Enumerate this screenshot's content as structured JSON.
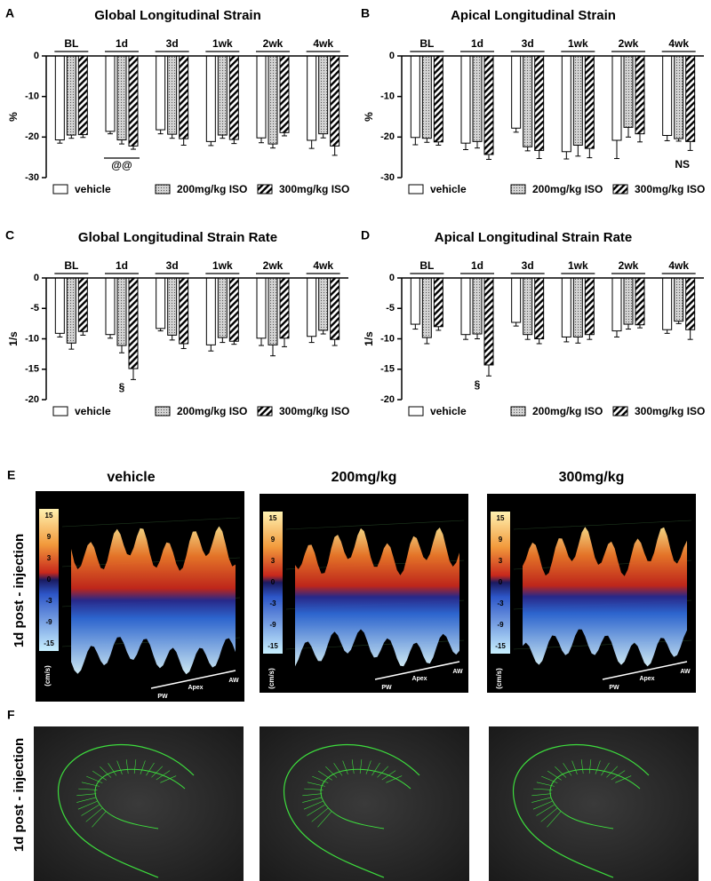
{
  "chart_data": [
    {
      "type": "bar",
      "panel_label": "A",
      "title": "Global Longitudinal Strain",
      "ylabel": "%",
      "categories": [
        "BL",
        "1d",
        "3d",
        "1wk",
        "2wk",
        "4wk"
      ],
      "series": [
        {
          "name": "vehicle",
          "color": "#ffffff",
          "pattern": "none",
          "values": [
            -20.7,
            -18.6,
            -18.2,
            -21.1,
            -20.2,
            -20.8
          ],
          "errors": [
            0.8,
            0.6,
            1.0,
            1.0,
            1.2,
            2.0
          ]
        },
        {
          "name": "200mg/kg ISO",
          "color": "#cfcfcf",
          "pattern": "dots",
          "values": [
            -19.5,
            -20.7,
            -19.3,
            -19.5,
            -21.7,
            -19.2
          ],
          "errors": [
            0.8,
            1.0,
            1.0,
            0.8,
            1.0,
            1.0
          ]
        },
        {
          "name": "300mg/kg ISO",
          "color": "#ffffff",
          "pattern": "hatch",
          "values": [
            -19.4,
            -22.2,
            -20.4,
            -20.6,
            -18.9,
            -22.2
          ],
          "errors": [
            0.7,
            0.8,
            1.6,
            1.0,
            0.8,
            2.3
          ]
        }
      ],
      "ylim": [
        -30,
        0
      ],
      "yticks": [
        0,
        -10,
        -20,
        -30
      ],
      "annotation": "@@"
    },
    {
      "type": "bar",
      "panel_label": "B",
      "title": "Apical Longitudinal Strain",
      "ylabel": "%",
      "categories": [
        "BL",
        "1d",
        "3d",
        "1wk",
        "2wk",
        "4wk"
      ],
      "series": [
        {
          "name": "vehicle",
          "color": "#ffffff",
          "pattern": "none",
          "values": [
            -20.1,
            -21.5,
            -17.8,
            -23.6,
            -20.8,
            -19.6
          ],
          "errors": [
            1.8,
            1.6,
            1.0,
            1.8,
            4.5,
            1.3
          ]
        },
        {
          "name": "200mg/kg ISO",
          "color": "#cfcfcf",
          "pattern": "dots",
          "values": [
            -20.3,
            -21.1,
            -22.4,
            -22.0,
            -17.6,
            -20.4
          ],
          "errors": [
            1.0,
            1.6,
            1.0,
            2.7,
            2.4,
            0.6
          ]
        },
        {
          "name": "300mg/kg ISO",
          "color": "#ffffff",
          "pattern": "hatch",
          "values": [
            -21.2,
            -24.3,
            -23.3,
            -22.8,
            -19.2,
            -21.1
          ],
          "errors": [
            0.8,
            1.2,
            2.0,
            2.3,
            2.0,
            2.2
          ]
        }
      ],
      "ylim": [
        -30,
        0
      ],
      "yticks": [
        0,
        -10,
        -20,
        -30
      ],
      "annotation": "NS"
    },
    {
      "type": "bar",
      "panel_label": "C",
      "title": "Global Longitudinal Strain Rate",
      "ylabel": "1/s",
      "categories": [
        "BL",
        "1d",
        "3d",
        "1wk",
        "2wk",
        "4wk"
      ],
      "series": [
        {
          "name": "vehicle",
          "color": "#ffffff",
          "pattern": "none",
          "values": [
            -9.1,
            -9.3,
            -8.3,
            -11.0,
            -9.9,
            -9.6
          ],
          "errors": [
            0.6,
            0.6,
            0.4,
            1.0,
            1.2,
            1.0
          ]
        },
        {
          "name": "200mg/kg ISO",
          "color": "#cfcfcf",
          "pattern": "dots",
          "values": [
            -10.7,
            -11.1,
            -9.4,
            -9.8,
            -11.0,
            -8.6
          ],
          "errors": [
            1.0,
            1.2,
            0.8,
            0.8,
            1.8,
            0.6
          ]
        },
        {
          "name": "300mg/kg ISO",
          "color": "#ffffff",
          "pattern": "hatch",
          "values": [
            -8.8,
            -14.9,
            -10.8,
            -10.4,
            -9.9,
            -10.1
          ],
          "errors": [
            0.6,
            1.8,
            0.8,
            0.5,
            1.4,
            1.0
          ]
        }
      ],
      "ylim": [
        -20,
        0
      ],
      "yticks": [
        0,
        -5,
        -10,
        -15,
        -20
      ],
      "annotation": "§"
    },
    {
      "type": "bar",
      "panel_label": "D",
      "title": "Apical Longitudinal Strain Rate",
      "ylabel": "1/s",
      "categories": [
        "BL",
        "1d",
        "3d",
        "1wk",
        "2wk",
        "4wk"
      ],
      "series": [
        {
          "name": "vehicle",
          "color": "#ffffff",
          "pattern": "none",
          "values": [
            -7.6,
            -9.3,
            -7.3,
            -9.7,
            -8.7,
            -8.5
          ],
          "errors": [
            0.8,
            0.8,
            0.6,
            0.8,
            1.0,
            0.6
          ]
        },
        {
          "name": "200mg/kg ISO",
          "color": "#cfcfcf",
          "pattern": "dots",
          "values": [
            -9.8,
            -9.2,
            -9.3,
            -9.7,
            -7.6,
            -7.1
          ],
          "errors": [
            1.0,
            0.8,
            0.8,
            1.0,
            0.8,
            0.4
          ]
        },
        {
          "name": "300mg/kg ISO",
          "color": "#ffffff",
          "pattern": "hatch",
          "values": [
            -8.0,
            -14.3,
            -10.0,
            -9.3,
            -7.7,
            -8.5
          ],
          "errors": [
            0.6,
            1.8,
            0.8,
            0.8,
            0.5,
            1.6
          ]
        }
      ],
      "ylim": [
        -20,
        0
      ],
      "yticks": [
        0,
        -5,
        -10,
        -15,
        -20
      ],
      "annotation": "§"
    }
  ],
  "panel_e": {
    "label": "E",
    "row_label": "1d post - injection",
    "titles": [
      "vehicle",
      "200mg/kg",
      "300mg/kg"
    ],
    "colorbar_ticks": [
      15,
      9,
      3,
      0,
      -3,
      -9,
      -15
    ],
    "colorbar_unit": "(cm/s)",
    "axis_labels": [
      "PW",
      "Apex",
      "AW"
    ]
  },
  "panel_f": {
    "label": "F",
    "row_label": "1d post - injection"
  }
}
